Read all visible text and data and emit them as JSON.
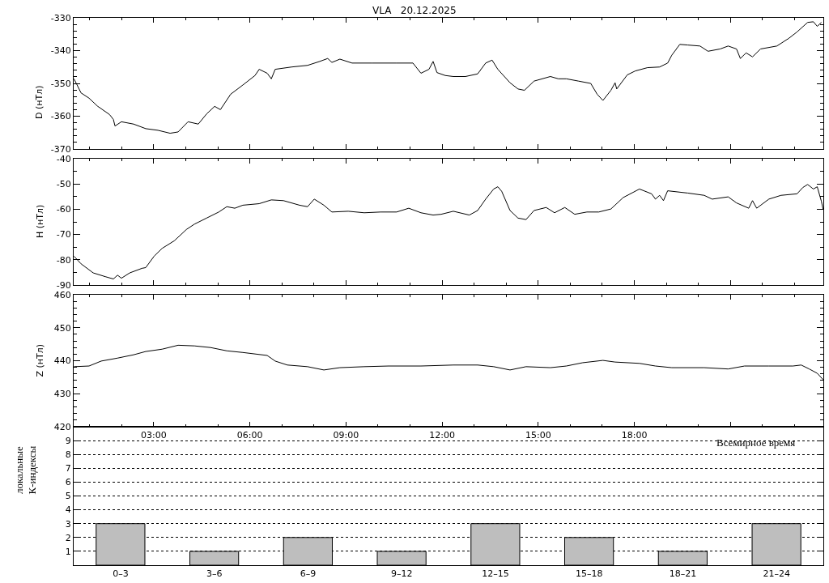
{
  "chart_data": [
    {
      "type": "line",
      "title": "VLA   20.12.2025",
      "ylabel": "D (нТл)",
      "xlim": [
        0.5,
        23.9
      ],
      "xticks": [
        3,
        6,
        9,
        12,
        15,
        18,
        21
      ],
      "ylim": [
        -370,
        -330
      ],
      "yticks": [
        -330,
        -340,
        -350,
        -360,
        -370
      ],
      "tick_labels": "y",
      "series": [
        {
          "color": "#000000",
          "x": [
            0.51,
            0.73,
            0.98,
            1.24,
            1.62,
            1.74,
            1.79,
            1.99,
            2.37,
            2.75,
            3.13,
            3.51,
            3.76,
            4.07,
            4.39,
            4.65,
            4.9,
            5.08,
            5.4,
            5.78,
            6.16,
            6.29,
            6.54,
            6.67,
            6.79,
            7.3,
            7.8,
            8.18,
            8.43,
            8.56,
            8.81,
            9.19,
            9.82,
            10.58,
            11.09,
            11.34,
            11.59,
            11.72,
            11.84,
            12.1,
            12.35,
            12.73,
            13.11,
            13.36,
            13.56,
            13.74,
            14.12,
            14.37,
            14.57,
            14.87,
            15.38,
            15.63,
            15.88,
            16.26,
            16.64,
            16.84,
            17.02,
            17.27,
            17.4,
            17.45,
            17.78,
            18.03,
            18.41,
            18.79,
            19.04,
            19.17,
            19.42,
            19.67,
            20.05,
            20.3,
            20.68,
            20.93,
            21.19,
            21.31,
            21.49,
            21.69,
            21.94,
            22.45,
            22.83,
            23.08,
            23.41,
            23.59,
            23.71,
            23.84
          ],
          "values": [
            -348.6,
            -352.9,
            -354.5,
            -356.9,
            -359.5,
            -361,
            -363,
            -361.7,
            -362.4,
            -363.8,
            -364.3,
            -365.2,
            -364.8,
            -361.7,
            -362.4,
            -359.3,
            -357,
            -358,
            -353.3,
            -350.5,
            -347.6,
            -345.7,
            -346.9,
            -348.6,
            -345.7,
            -345,
            -344.5,
            -343.3,
            -342.4,
            -343.6,
            -342.6,
            -343.8,
            -343.8,
            -343.8,
            -343.8,
            -346.9,
            -345.7,
            -343.3,
            -346.7,
            -347.6,
            -347.9,
            -347.9,
            -347.1,
            -343.8,
            -342.9,
            -345.7,
            -349.8,
            -351.7,
            -352.1,
            -349.3,
            -347.9,
            -348.6,
            -348.6,
            -349.3,
            -350,
            -353.3,
            -355.2,
            -352.1,
            -349.8,
            -351.7,
            -347.4,
            -346.2,
            -345.2,
            -345,
            -343.8,
            -341.4,
            -338.1,
            -338.3,
            -338.6,
            -340.2,
            -339.5,
            -338.6,
            -339.5,
            -342.4,
            -340.7,
            -341.9,
            -339.5,
            -338.6,
            -336.2,
            -334.3,
            -331.4,
            -331.2,
            -332.6,
            -331.4
          ]
        }
      ]
    },
    {
      "type": "line",
      "ylabel": "H (нТл)",
      "xlim": [
        0.5,
        23.9
      ],
      "xticks": [
        3,
        6,
        9,
        12,
        15,
        18,
        21
      ],
      "ylim": [
        -90,
        -40
      ],
      "yticks": [
        -40,
        -50,
        -60,
        -70,
        -80,
        -90
      ],
      "tick_labels": "y",
      "series": [
        {
          "color": "#000000",
          "x": [
            0.51,
            0.73,
            1.11,
            1.49,
            1.74,
            1.87,
            1.99,
            2.25,
            2.63,
            2.75,
            3.01,
            3.26,
            3.64,
            4.02,
            4.27,
            4.65,
            5.03,
            5.28,
            5.53,
            5.78,
            6.29,
            6.67,
            7.05,
            7.55,
            7.8,
            8.01,
            8.31,
            8.56,
            9.07,
            9.57,
            10.08,
            10.58,
            10.96,
            11.34,
            11.72,
            11.97,
            12.35,
            12.85,
            13.11,
            13.36,
            13.61,
            13.74,
            13.86,
            14.12,
            14.37,
            14.62,
            14.87,
            15.25,
            15.51,
            15.83,
            16.14,
            16.52,
            16.89,
            17.27,
            17.65,
            18.16,
            18.54,
            18.66,
            18.79,
            18.91,
            19.04,
            19.67,
            20.18,
            20.43,
            20.93,
            21.19,
            21.57,
            21.69,
            21.82,
            22.2,
            22.58,
            23.08,
            23.26,
            23.41,
            23.59,
            23.71,
            23.84,
            23.89
          ],
          "values": [
            -78.6,
            -81.6,
            -85.2,
            -86.7,
            -87.6,
            -86.1,
            -87.3,
            -85.2,
            -83.4,
            -83.1,
            -78.6,
            -75.5,
            -72.5,
            -68,
            -65.9,
            -63.5,
            -61.1,
            -59,
            -59.6,
            -58.4,
            -57.8,
            -56.3,
            -56.6,
            -58.4,
            -59,
            -56,
            -58.4,
            -61.1,
            -60.8,
            -61.4,
            -61.1,
            -61.1,
            -59.6,
            -61.4,
            -62.3,
            -62,
            -60.8,
            -62.3,
            -60.5,
            -56,
            -52,
            -51.1,
            -52.9,
            -60.5,
            -63.5,
            -64.1,
            -60.5,
            -59.3,
            -61.4,
            -59.3,
            -62,
            -61.1,
            -61.1,
            -59.9,
            -55.4,
            -52,
            -53.9,
            -56,
            -54.5,
            -56.6,
            -52.7,
            -53.6,
            -54.5,
            -56,
            -55.1,
            -57.5,
            -59.6,
            -56.6,
            -59.6,
            -56,
            -54.5,
            -53.9,
            -51.4,
            -50.2,
            -52,
            -51.1,
            -56.9,
            -59.9
          ]
        }
      ]
    },
    {
      "type": "line",
      "ylabel": "Z (нТл)",
      "xlabel": "Всемирное время",
      "xlim": [
        0.5,
        23.9
      ],
      "xticks": [
        {
          "value": 3,
          "label": "03:00"
        },
        {
          "value": 6,
          "label": "06:00"
        },
        {
          "value": 9,
          "label": "09:00"
        },
        {
          "value": 12,
          "label": "12:00"
        },
        {
          "value": 15,
          "label": "15:00"
        },
        {
          "value": 18,
          "label": "18:00"
        },
        {
          "value": 21,
          "label": null
        }
      ],
      "ylim": [
        420,
        460
      ],
      "yticks": [
        420,
        430,
        440,
        450,
        460
      ],
      "series": [
        {
          "color": "#000000",
          "x": [
            0.51,
            0.98,
            1.36,
            1.87,
            2.37,
            2.75,
            3.26,
            3.76,
            4.27,
            4.77,
            5.28,
            5.78,
            6.54,
            6.79,
            7.17,
            7.8,
            8.31,
            8.81,
            9.57,
            10.33,
            11.34,
            12.35,
            13.11,
            13.61,
            14.12,
            14.62,
            15.38,
            15.88,
            16.39,
            17.02,
            17.4,
            18.16,
            18.66,
            19.17,
            20.18,
            20.93,
            21.44,
            22.2,
            22.95,
            23.21,
            23.46,
            23.71,
            23.89
          ],
          "values": [
            438.2,
            438.4,
            439.9,
            440.8,
            441.8,
            442.8,
            443.5,
            444.7,
            444.5,
            444,
            443,
            442.5,
            441.6,
            439.9,
            438.7,
            438.2,
            437.2,
            437.9,
            438.2,
            438.4,
            438.4,
            438.7,
            438.7,
            438.2,
            437.2,
            438.2,
            437.9,
            438.4,
            439.4,
            440.1,
            439.6,
            439.2,
            438.4,
            437.9,
            437.9,
            437.5,
            438.4,
            438.4,
            438.4,
            438.7,
            437.5,
            436.2,
            434.3
          ]
        }
      ]
    },
    {
      "type": "bar",
      "ylabel": "локальные\nК-индексы",
      "categories": [
        "0–3",
        "3–6",
        "6–9",
        "9–12",
        "12–15",
        "15–18",
        "18–21",
        "21–24"
      ],
      "values": [
        3,
        1,
        2,
        1,
        3,
        2,
        1,
        3
      ],
      "color": "#bebebe",
      "ylim": [
        0,
        10
      ],
      "yticks": [
        1,
        2,
        3,
        4,
        5,
        6,
        7,
        8,
        9
      ],
      "grid": "y"
    }
  ]
}
